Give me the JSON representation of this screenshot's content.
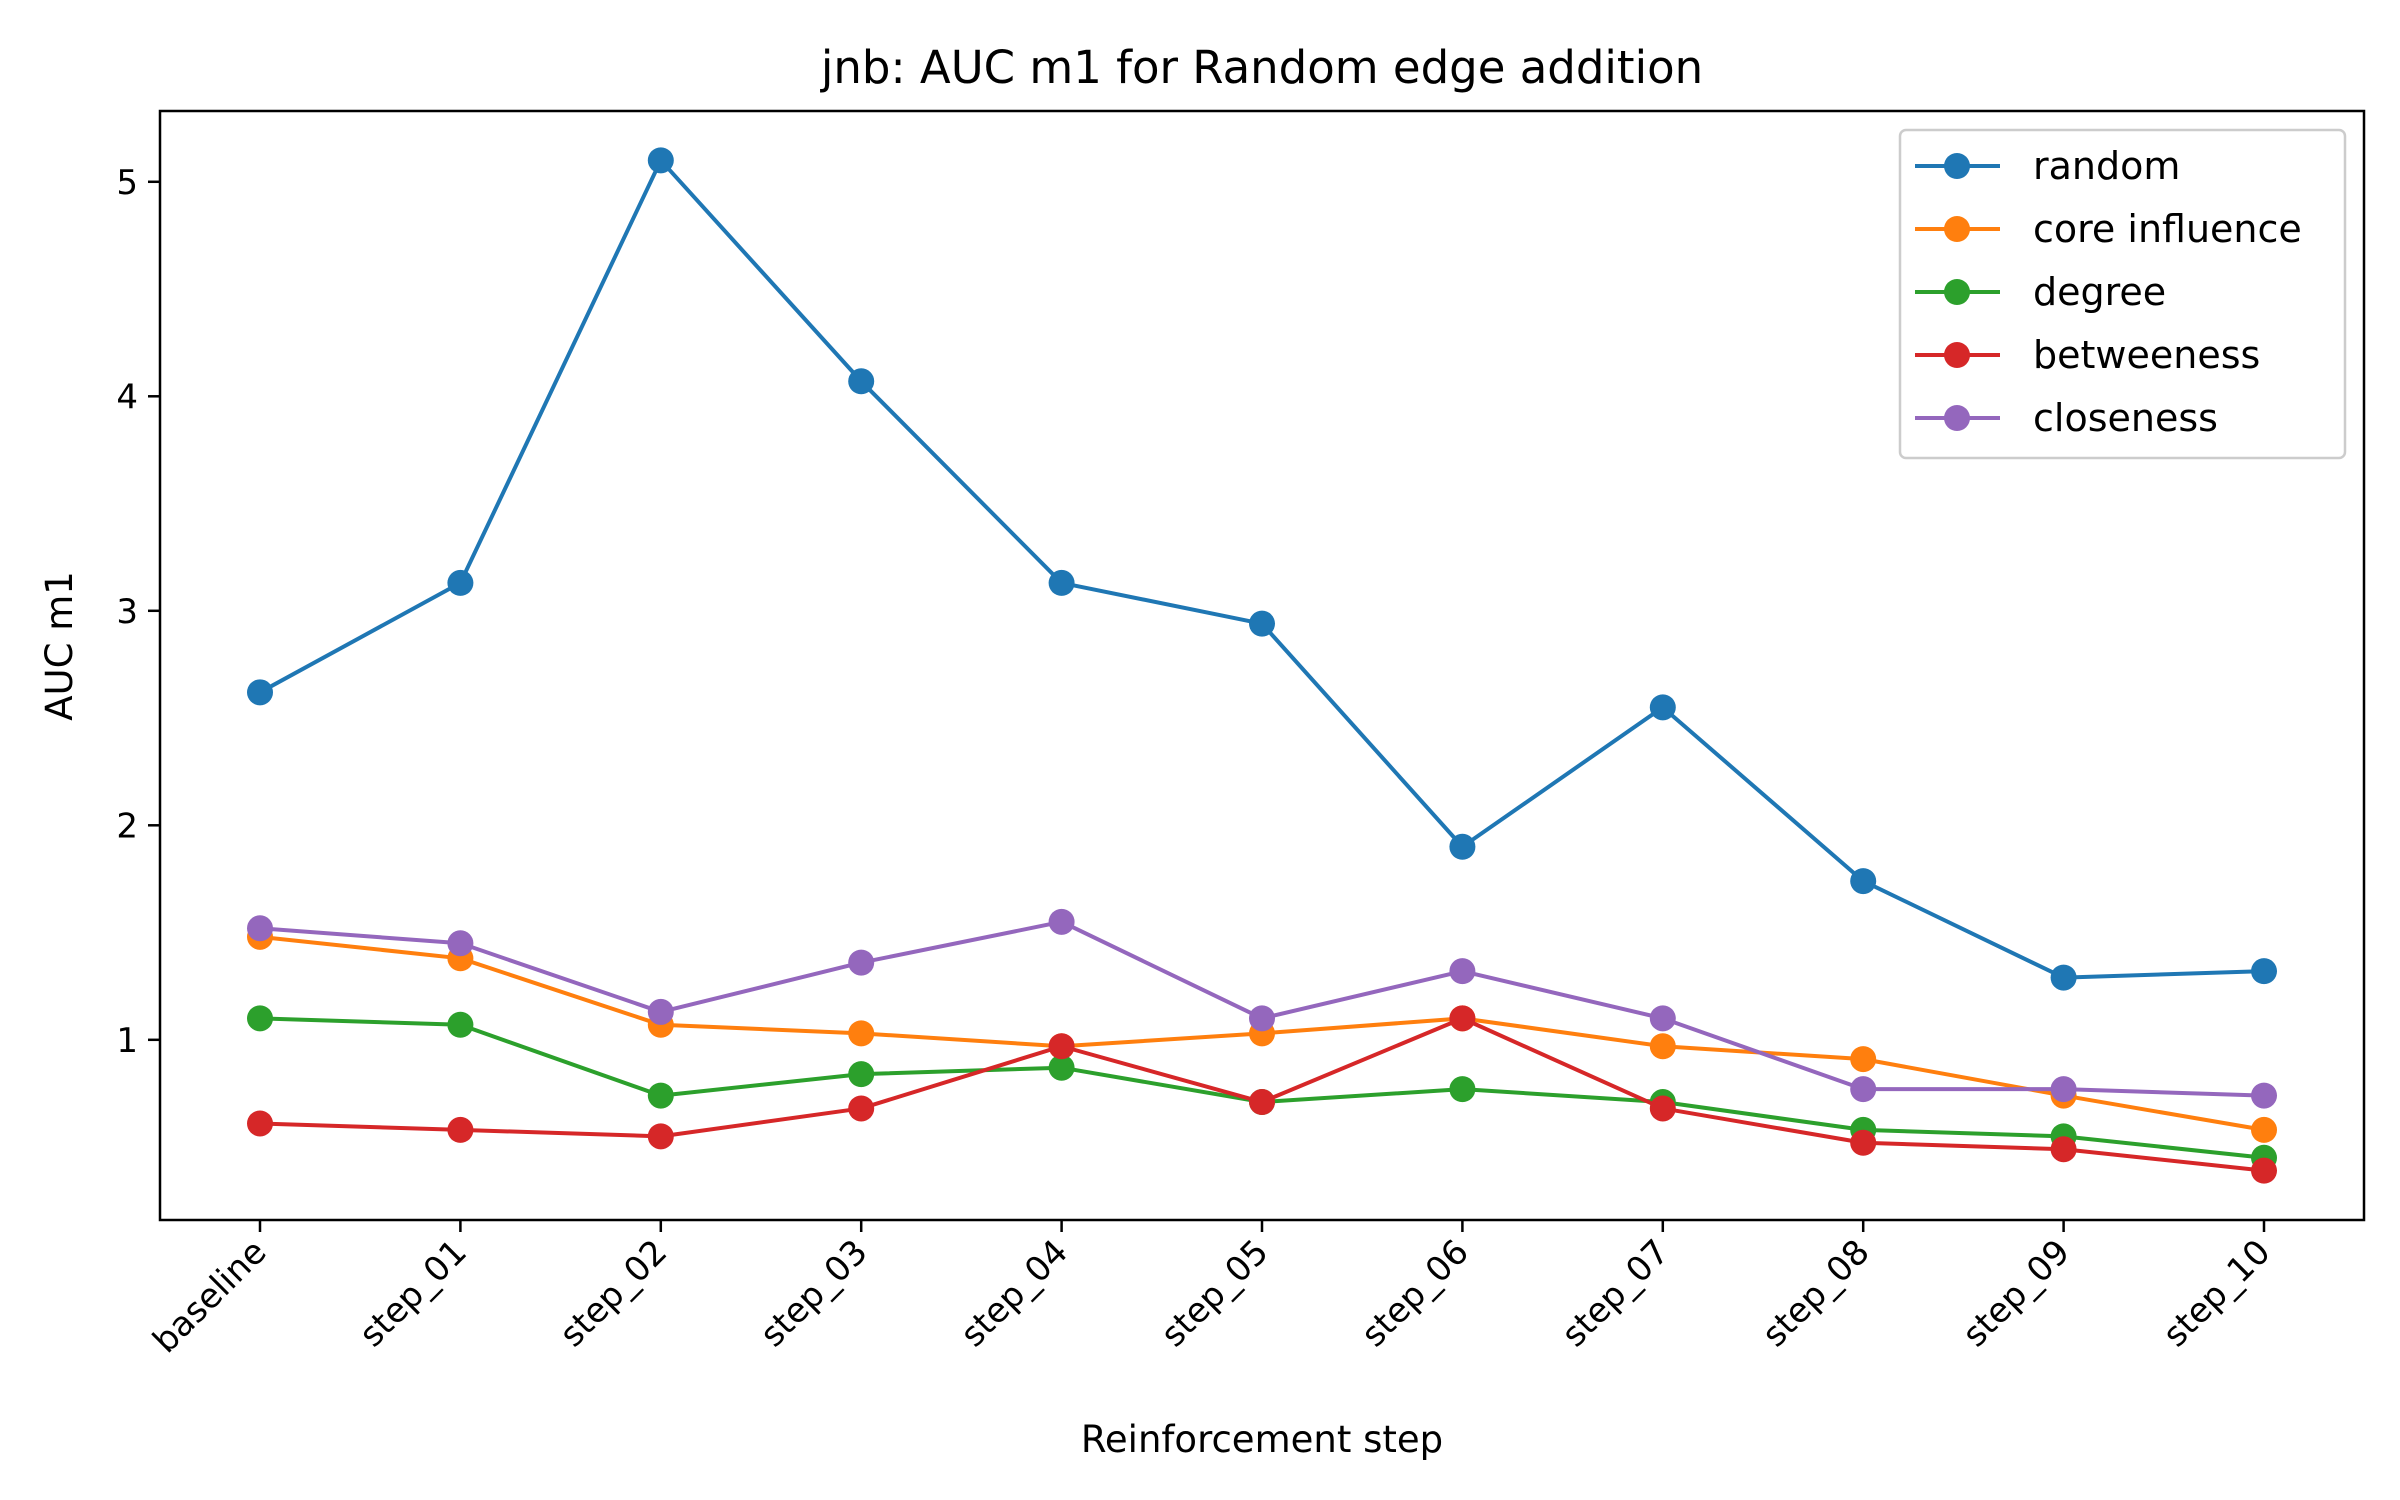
{
  "chart_data": {
    "type": "line",
    "title": "jnb: AUC m1 for Random edge addition",
    "xlabel": "Reinforcement step",
    "ylabel": "AUC m1",
    "categories": [
      "baseline",
      "step_01",
      "step_02",
      "step_03",
      "step_04",
      "step_05",
      "step_06",
      "step_07",
      "step_08",
      "step_09",
      "step_10"
    ],
    "yticks": [
      1,
      2,
      3,
      4,
      5
    ],
    "ylim": [
      0.16,
      5.33
    ],
    "grid": false,
    "legend_position": "top-right",
    "series": [
      {
        "name": "random",
        "color": "#1f77b4",
        "values": [
          2.62,
          3.13,
          5.1,
          4.07,
          3.13,
          2.94,
          1.9,
          2.55,
          1.74,
          1.29,
          1.32
        ]
      },
      {
        "name": "core influence",
        "color": "#ff7f0e",
        "values": [
          1.48,
          1.38,
          1.07,
          1.03,
          0.97,
          1.03,
          1.1,
          0.97,
          0.91,
          0.74,
          0.58
        ]
      },
      {
        "name": "degree",
        "color": "#2ca02c",
        "values": [
          1.1,
          1.07,
          0.74,
          0.84,
          0.87,
          0.71,
          0.77,
          0.71,
          0.58,
          0.55,
          0.45
        ]
      },
      {
        "name": "betweeness",
        "color": "#d62728",
        "values": [
          0.61,
          0.58,
          0.55,
          0.68,
          0.97,
          0.71,
          1.1,
          0.68,
          0.52,
          0.49,
          0.39
        ]
      },
      {
        "name": "closeness",
        "color": "#9467bd",
        "values": [
          1.52,
          1.45,
          1.13,
          1.36,
          1.55,
          1.1,
          1.32,
          1.1,
          0.77,
          0.77,
          0.74
        ]
      }
    ]
  }
}
